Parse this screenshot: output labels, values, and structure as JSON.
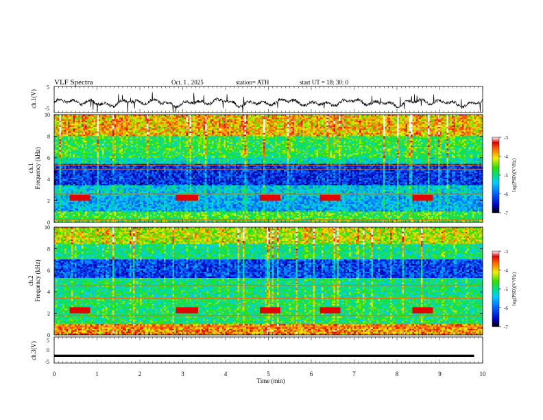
{
  "header": {
    "title": "VLF  Spectra",
    "date": "Oct. 1  , 2025",
    "station": "station= ATH",
    "start": "start  UT  =    18: 30: 0"
  },
  "chart_data": [
    {
      "id": "ch1",
      "type": "line",
      "ylabel": "ch.1(V)",
      "ylim": [
        -5,
        5
      ],
      "yticks": [
        "5",
        "-5"
      ],
      "xlim": [
        0,
        10
      ],
      "description_series": "broadband waveform envelope, roughly -3 to +2 V with spikes"
    },
    {
      "id": "ch1-spectrogram",
      "type": "heatmap",
      "ylabel_lines": [
        "ch.1",
        "Frequency  (kHz)"
      ],
      "ylim": [
        0,
        10
      ],
      "yticks": [
        "0",
        "2",
        "4",
        "6",
        "8",
        "10"
      ],
      "xlim": [
        0,
        10
      ],
      "colorbar": {
        "label": "log(PSD)(V²/Hz)",
        "range": [
          -7,
          -3
        ],
        "ticks": [
          "-3",
          "-4",
          "-5",
          "-6",
          "-7"
        ]
      },
      "bands": [
        {
          "f_min": 8.0,
          "f_max": 10.0,
          "level": -4.0
        },
        {
          "f_min": 6.0,
          "f_max": 8.0,
          "level": -4.8
        },
        {
          "f_min": 5.4,
          "f_max": 6.0,
          "level": -5.2
        },
        {
          "f_min": 3.5,
          "f_max": 5.4,
          "level": -6.3
        },
        {
          "f_min": 2.5,
          "f_max": 3.5,
          "level": -5.4
        },
        {
          "f_min": 1.0,
          "f_max": 2.5,
          "level": -5.6
        },
        {
          "f_min": 0.0,
          "f_max": 1.0,
          "level": -4.7
        }
      ],
      "lines_khz": [
        5.3,
        4.9,
        2.6,
        0.25
      ],
      "bursts_min": [
        0.35,
        2.85,
        4.8,
        6.2,
        8.35
      ]
    },
    {
      "id": "ch2-spectrogram",
      "type": "heatmap",
      "ylabel_lines": [
        "ch.2",
        "Frequency  (kHz)"
      ],
      "ylim": [
        0,
        10
      ],
      "yticks": [
        "0",
        "2",
        "4",
        "6",
        "8",
        "10"
      ],
      "xlim": [
        0,
        10
      ],
      "colorbar": {
        "label": "log(PSD)(V²/Hz)",
        "range": [
          -7,
          -3
        ],
        "ticks": [
          "-3",
          "-4",
          "-5",
          "-6",
          "-7"
        ]
      },
      "bands": [
        {
          "f_min": 8.5,
          "f_max": 10.0,
          "level": -4.3
        },
        {
          "f_min": 7.0,
          "f_max": 8.5,
          "level": -5.0
        },
        {
          "f_min": 5.3,
          "f_max": 7.0,
          "level": -6.2
        },
        {
          "f_min": 3.4,
          "f_max": 5.3,
          "level": -5.0
        },
        {
          "f_min": 1.0,
          "f_max": 3.4,
          "level": -4.9
        },
        {
          "f_min": 0.0,
          "f_max": 1.0,
          "level": -3.8
        }
      ],
      "lines_khz": [
        4.6,
        3.4,
        1.8,
        0.75
      ],
      "bursts_min": [
        0.35,
        2.85,
        4.8,
        6.2,
        8.35
      ]
    },
    {
      "id": "ch3",
      "type": "line",
      "ylabel": "ch.3(V)",
      "ylim": [
        -5,
        5
      ],
      "yticks": [
        "5",
        "0",
        "-5"
      ],
      "xlim": [
        0,
        10
      ],
      "series": [
        {
          "name": "ch.3",
          "constant": -2.2
        }
      ]
    }
  ],
  "xaxis": {
    "label": "Time  (min)",
    "ticks": [
      "0",
      "1",
      "2",
      "3",
      "4",
      "5",
      "6",
      "7",
      "8",
      "9",
      "10"
    ]
  }
}
